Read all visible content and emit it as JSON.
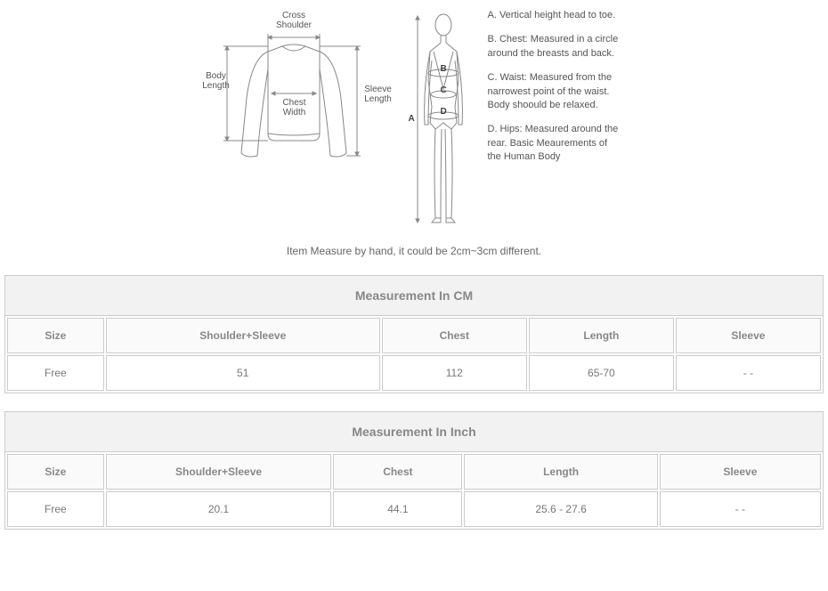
{
  "diagram": {
    "shirt": {
      "labels": {
        "cross_shoulder": "Cross\nShoulder",
        "body_length": "Body\nLength",
        "chest_width": "Chest\nWidth",
        "sleeve_length": "Sleeve\nLength"
      }
    },
    "body": {
      "point_a": "A",
      "point_b": "B",
      "point_c": "C",
      "point_d": "D"
    },
    "definitions": {
      "a": "A. Vertical height head to toe.",
      "b": "B. Chest: Measured in a circle around the breasts and back.",
      "c": "C. Waist: Measured from the narrowest point of the waist. Body shoould be relaxed.",
      "d": "D. Hips: Measured around the rear. Basic Meaurements of the Human Body"
    }
  },
  "note": "Item Measure by hand, it could be 2cm~3cm different.",
  "table_cm": {
    "title": "Measurement In CM",
    "columns": [
      "Size",
      "Shoulder+Sleeve",
      "Chest",
      "Length",
      "Sleeve"
    ],
    "col_widths": [
      "12%",
      "34%",
      "18%",
      "18%",
      "18%"
    ],
    "rows": [
      [
        "Free",
        "51",
        "112",
        "65-70",
        "- -"
      ]
    ]
  },
  "table_inch": {
    "title": "Measurement In Inch",
    "columns": [
      "Size",
      "Shoulder+Sleeve",
      "Chest",
      "Length",
      "Sleeve"
    ],
    "col_widths": [
      "12%",
      "28%",
      "16%",
      "24%",
      "20%"
    ],
    "rows": [
      [
        "Free",
        "20.1",
        "44.1",
        "25.6 - 27.6",
        "- -"
      ]
    ]
  }
}
